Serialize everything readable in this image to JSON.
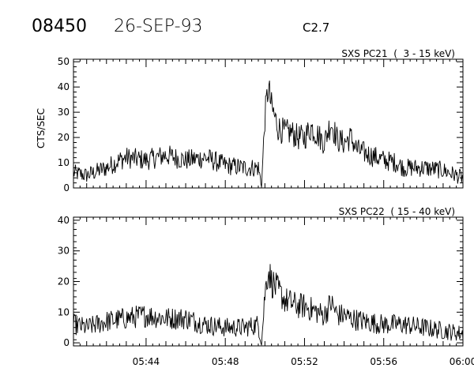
{
  "header": {
    "event_id": "08450",
    "date": "26-SEP-93",
    "flare_class": "C2.7"
  },
  "chart_data": [
    {
      "type": "line",
      "title": "SXS PC21  (  3 - 15 keV)",
      "ylabel": "CTS/SEC",
      "xlabel": "",
      "ylim": [
        0,
        51
      ],
      "yticks": [
        0,
        10,
        20,
        30,
        40,
        50
      ],
      "xlim": [
        "05:40:20",
        "06:00:00"
      ],
      "xtick_labels": [],
      "grid": false,
      "series": [
        {
          "x": [
            "05:40:20",
            "05:41:00",
            "05:42:00",
            "05:42:40",
            "05:43:00",
            "05:44:00",
            "05:45:00",
            "05:46:00",
            "05:47:00",
            "05:48:00",
            "05:49:00",
            "05:49:40",
            "05:49:50",
            "05:50:00",
            "05:50:10",
            "05:50:20",
            "05:50:40",
            "05:51:00",
            "05:51:20",
            "05:51:40",
            "05:52:00",
            "05:52:20",
            "05:52:40",
            "05:53:00",
            "05:53:20",
            "05:53:40",
            "05:54:00",
            "05:54:20",
            "05:54:40",
            "05:55:00",
            "05:55:20",
            "05:56:00",
            "05:56:40",
            "05:57:00",
            "05:58:00",
            "05:59:00",
            "06:00:00"
          ],
          "values": [
            6,
            5,
            8,
            11,
            12,
            11,
            13,
            11,
            12,
            9,
            8,
            8,
            1,
            28,
            40,
            32,
            24,
            22,
            22,
            20,
            20,
            24,
            21,
            18,
            26,
            19,
            18,
            20,
            15,
            14,
            13,
            11,
            10,
            8,
            8,
            7,
            4
          ]
        }
      ]
    },
    {
      "type": "line",
      "title": "SXS PC22  ( 15 - 40 keV)",
      "ylabel": "",
      "xlabel": "",
      "ylim": [
        -1,
        41
      ],
      "yticks": [
        0,
        10,
        20,
        30,
        40
      ],
      "xlim": [
        "05:40:20",
        "06:00:00"
      ],
      "xtick_labels": [
        "05:44",
        "05:48",
        "05:52",
        "05:56",
        "06:00"
      ],
      "grid": false,
      "series": [
        {
          "x": [
            "05:40:20",
            "05:41:00",
            "05:42:00",
            "05:43:00",
            "05:44:00",
            "05:45:00",
            "05:46:00",
            "05:47:00",
            "05:48:00",
            "05:49:00",
            "05:49:40",
            "05:49:50",
            "05:50:00",
            "05:50:10",
            "05:50:20",
            "05:50:40",
            "05:51:00",
            "05:51:20",
            "05:51:40",
            "05:52:00",
            "05:52:20",
            "05:52:40",
            "05:53:00",
            "05:53:20",
            "05:53:40",
            "05:54:00",
            "05:54:20",
            "05:55:00",
            "05:56:00",
            "05:57:00",
            "05:58:00",
            "05:59:00",
            "06:00:00"
          ],
          "values": [
            6,
            5,
            7,
            8,
            9,
            8,
            8,
            6,
            5,
            5,
            6,
            0,
            16,
            24,
            20,
            17,
            14,
            13,
            12,
            12,
            11,
            10,
            9,
            13,
            9,
            9,
            8,
            7,
            6,
            6,
            5,
            4,
            3
          ]
        }
      ]
    }
  ]
}
